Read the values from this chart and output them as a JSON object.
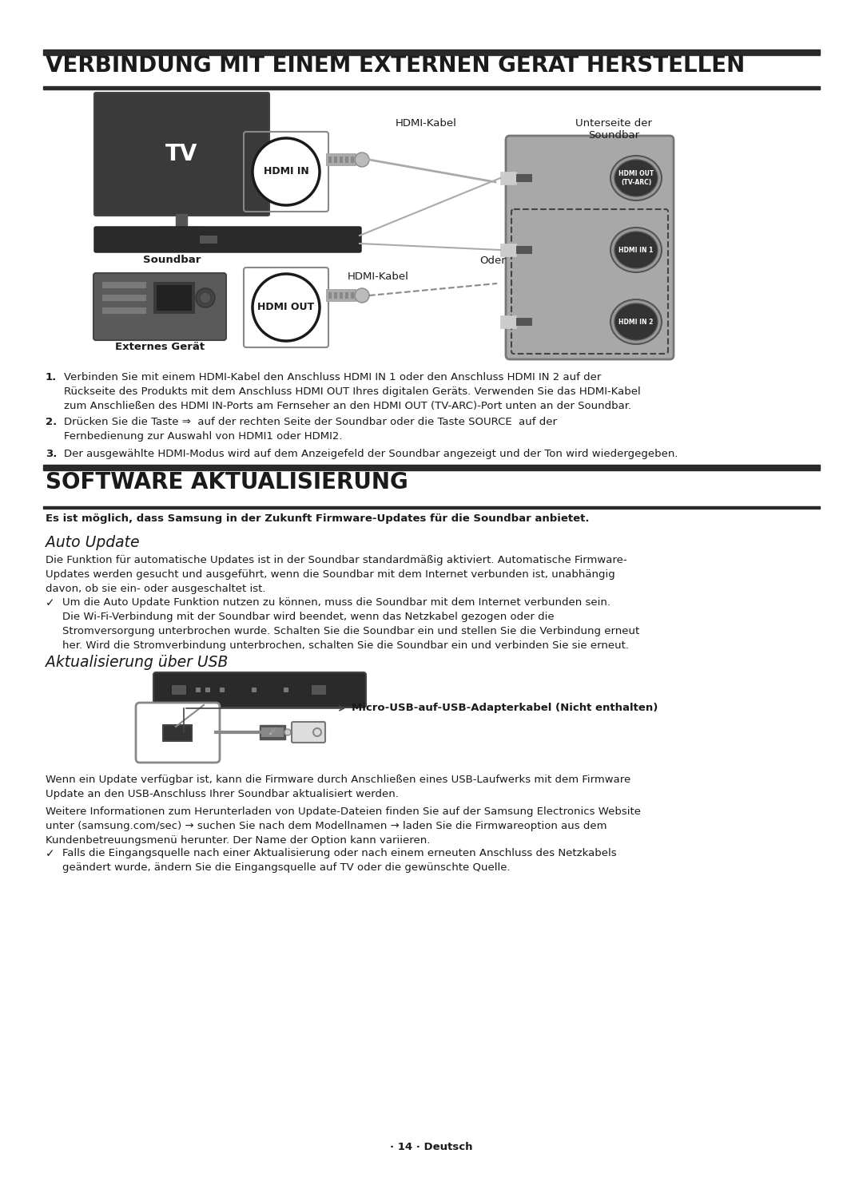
{
  "bg_color": "#ffffff",
  "title1": "VERBINDUNG MIT EINEM EXTERNEN GERÄT HERSTELLEN",
  "title2": "SOFTWARE AKTUALISIERUNG",
  "subtitle_bold": "Es ist möglich, dass Samsung in der Zukunft Firmware-Updates für die Soundbar anbietet.",
  "auto_update_title": "Auto Update",
  "usb_title": "Aktualisierung über USB",
  "usb_label": "Micro-USB-auf-USB-Adapterkabel (Nicht enthalten)",
  "footer": "· 14 · Deutsch",
  "hdmi_kabel1": "HDMI-Kabel",
  "hdmi_kabel2": "HDMI-Kabel",
  "oder": "Oder",
  "unterseite": "Unterseite der\nSoundbar",
  "soundbar_label": "Soundbar",
  "externes_geraet": "Externes Gerät",
  "hdmi_in_label": "HDMI IN",
  "hdmi_out_label": "HDMI OUT",
  "hdmi_out_arc": "HDMI OUT\n(TV-ARC)",
  "hdmi_in1": "HDMI IN 1",
  "hdmi_in2": "HDMI IN 2",
  "para1": "Verbinden Sie mit einem HDMI-Kabel den Anschluss HDMI IN 1 oder den Anschluss HDMI IN 2 auf der\nRückseite des Produkts mit dem Anschluss HDMI OUT Ihres digitalen Geräts. Verwenden Sie das HDMI-Kabel\nzum Anschließen des HDMI IN-Ports am Fernseher an den HDMI OUT (TV-ARC)-Port unten an der Soundbar.",
  "para2a": "Drücken Sie die Taste ⇒  auf der rechten Seite der Soundbar oder die Taste ",
  "para2b": "SOURCE",
  "para2c": "  auf der\nFernbedienung zur Auswahl von ",
  "para2d": "HDMI1",
  "para2e": " oder ",
  "para2f": "HDMI2",
  "para2g": ".",
  "para3": "Der ausgewählte HDMI-Modus wird auf dem Anzeigefeld der Soundbar angezeigt und der Ton wird wiedergegeben.",
  "auto_para": "Die Funktion für automatische Updates ist in der Soundbar standardmäßig aktiviert. Automatische Firmware-\nUpdates werden gesucht und ausgeführt, wenn die Soundbar mit dem Internet verbunden ist, unabhängig\ndavon, ob sie ein- oder ausgeschaltet ist.",
  "check1": "Um die Auto Update Funktion nutzen zu können, muss die Soundbar mit dem Internet verbunden sein.\nDie Wi-Fi-Verbindung mit der Soundbar wird beendet, wenn das Netzkabel gezogen oder die\nStromversorgung unterbrochen wurde. Schalten Sie die Soundbar ein und stellen Sie die Verbindung erneut\nher. Wird die Stromverbindung unterbrochen, schalten Sie die Soundbar ein und verbinden Sie sie erneut.",
  "usb_para1": "Wenn ein Update verfügbar ist, kann die Firmware durch Anschließen eines USB-Laufwerks mit dem Firmware\nUpdate an den USB-Anschluss Ihrer Soundbar aktualisiert werden.",
  "usb_para2": "Weitere Informationen zum Herunterladen von Update-Dateien finden Sie auf der Samsung Electronics Website\nunter (samsung.com/sec) → suchen Sie nach dem Modellnamen → laden Sie die Firmwareoption aus dem\nKundenbetreuungsmenü herunter. Der Name der Option kann variieren.",
  "check2": "Falls die Eingangsquelle nach einer Aktualisierung oder nach einem erneuten Anschluss des Netzkabels\ngeändert wurde, ändern Sie die Eingangsquelle auf TV oder die gewünschte Quelle."
}
